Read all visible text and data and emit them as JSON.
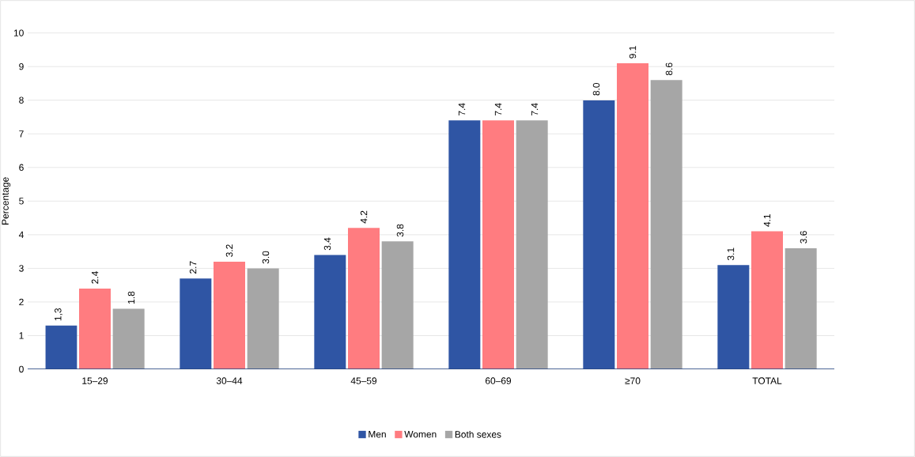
{
  "chart_data": {
    "type": "bar",
    "ylabel": "Percentage",
    "categories": [
      "15–29",
      "30–44",
      "45–59",
      "60–69",
      "≥70",
      "TOTAL"
    ],
    "series": [
      {
        "name": "Men",
        "color": "#2f55a4",
        "values": [
          1.3,
          2.7,
          3.4,
          7.4,
          8.0,
          3.1
        ],
        "value_labels": [
          "1,3",
          "2.7",
          "3.4",
          "7.4",
          "8.0",
          "3.1"
        ]
      },
      {
        "name": "Women",
        "color": "#ff7c80",
        "values": [
          2.4,
          3.2,
          4.2,
          7.4,
          9.1,
          4.1
        ],
        "value_labels": [
          "2.4",
          "3.2",
          "4.2",
          "7.4",
          "9.1",
          "4.1"
        ]
      },
      {
        "name": "Both sexes",
        "color": "#a6a6a6",
        "values": [
          1.8,
          3.0,
          3.8,
          7.4,
          8.6,
          3.6
        ],
        "value_labels": [
          "1.8",
          "3.0",
          "3.8",
          "7.4",
          "8.6",
          "3.6"
        ]
      }
    ],
    "ylim": [
      0,
      10
    ],
    "yticks": [
      0,
      1,
      2,
      3,
      4,
      5,
      6,
      7,
      8,
      9,
      10
    ],
    "grid": "y",
    "legend": "bottom"
  }
}
